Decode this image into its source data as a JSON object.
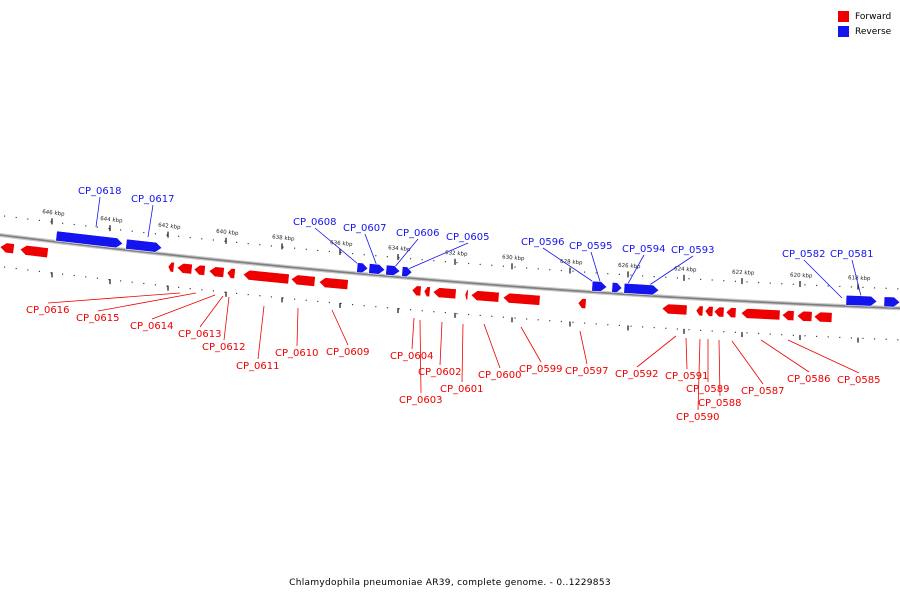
{
  "legend": {
    "forward_label": "Forward",
    "reverse_label": "Reverse"
  },
  "colors": {
    "forward": "#ee0000",
    "reverse": "#1414ee",
    "backbone": "#7f7f7f"
  },
  "caption": "Chlamydophila pneumoniae AR39, complete genome. - 0..1229853",
  "ticks": [
    "646 kbp",
    "644 kbp",
    "642 kbp",
    "640 kbp",
    "638 kbp",
    "636 kbp",
    "634 kbp",
    "632 kbp",
    "630 kbp",
    "628 kbp",
    "626 kbp",
    "624 kbp",
    "622 kbp",
    "620 kbp",
    "618 kbp"
  ],
  "genes": [
    {
      "label": "CP_0618",
      "strand": "reverse"
    },
    {
      "label": "CP_0617",
      "strand": "reverse"
    },
    {
      "label": "CP_0616",
      "strand": "forward"
    },
    {
      "label": "CP_0615",
      "strand": "forward"
    },
    {
      "label": "CP_0614",
      "strand": "forward"
    },
    {
      "label": "CP_0613",
      "strand": "forward"
    },
    {
      "label": "CP_0612",
      "strand": "forward"
    },
    {
      "label": "CP_0611",
      "strand": "forward"
    },
    {
      "label": "CP_0610",
      "strand": "forward"
    },
    {
      "label": "CP_0609",
      "strand": "forward"
    },
    {
      "label": "CP_0608",
      "strand": "reverse"
    },
    {
      "label": "CP_0607",
      "strand": "reverse"
    },
    {
      "label": "CP_0606",
      "strand": "reverse"
    },
    {
      "label": "CP_0605",
      "strand": "reverse"
    },
    {
      "label": "CP_0604",
      "strand": "forward"
    },
    {
      "label": "CP_0603",
      "strand": "forward"
    },
    {
      "label": "CP_0602",
      "strand": "forward"
    },
    {
      "label": "CP_0601",
      "strand": "forward"
    },
    {
      "label": "CP_0600",
      "strand": "forward"
    },
    {
      "label": "CP_0599",
      "strand": "forward"
    },
    {
      "label": "CP_0597",
      "strand": "forward"
    },
    {
      "label": "CP_0596",
      "strand": "reverse"
    },
    {
      "label": "CP_0595",
      "strand": "reverse"
    },
    {
      "label": "CP_0594",
      "strand": "reverse"
    },
    {
      "label": "CP_0593",
      "strand": "reverse"
    },
    {
      "label": "CP_0592",
      "strand": "forward"
    },
    {
      "label": "CP_0591",
      "strand": "forward"
    },
    {
      "label": "CP_0590",
      "strand": "forward"
    },
    {
      "label": "CP_0589",
      "strand": "forward"
    },
    {
      "label": "CP_0588",
      "strand": "forward"
    },
    {
      "label": "CP_0587",
      "strand": "forward"
    },
    {
      "label": "CP_0586",
      "strand": "forward"
    },
    {
      "label": "CP_0585",
      "strand": "forward"
    },
    {
      "label": "CP_0582",
      "strand": "reverse"
    },
    {
      "label": "CP_0581",
      "strand": "reverse"
    }
  ]
}
